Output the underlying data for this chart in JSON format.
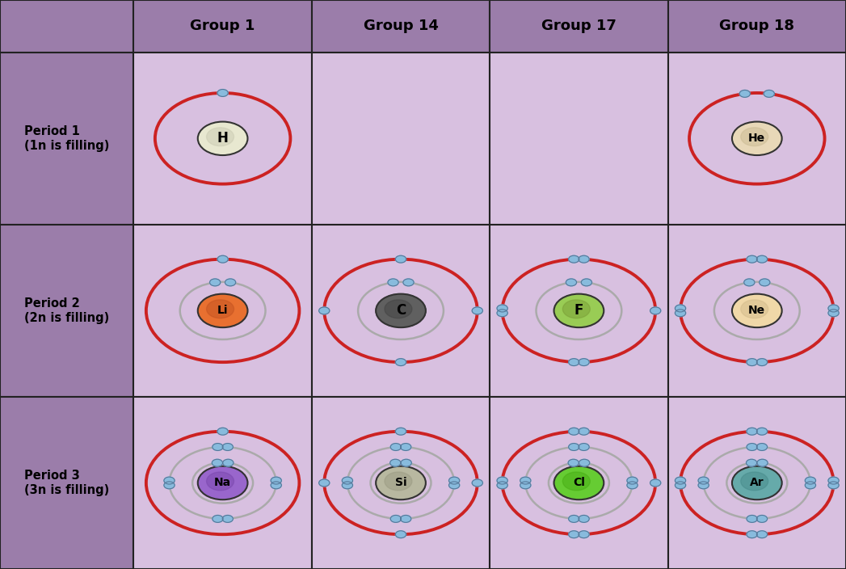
{
  "fig_width": 10.47,
  "fig_height": 7.04,
  "dpi": 100,
  "bg_color": "#1a1a1a",
  "header_bg": "#9b7daa",
  "period_label_bg": "#9b7daa",
  "cell_bg": "#d8c0e0",
  "grid_color": "#222222",
  "header_text_color": "#000000",
  "period_text_color": "#000000",
  "col_labels": [
    "Group 1",
    "Group 14",
    "Group 17",
    "Group 18"
  ],
  "row_labels": [
    "Period 1\n(1n is filling)",
    "Period 2\n(2n is filling)",
    "Period 3\n(3n is filling)"
  ],
  "elements": {
    "H": {
      "symbol": "H",
      "period": 1,
      "group_idx": 0,
      "nucleus_color": "#e8e8d0",
      "nucleus_color2": "#c8c8b0",
      "shells": [
        1
      ]
    },
    "He": {
      "symbol": "He",
      "period": 1,
      "group_idx": 3,
      "nucleus_color": "#e8d8b8",
      "nucleus_color2": "#c8b890",
      "shells": [
        2
      ]
    },
    "Li": {
      "symbol": "Li",
      "period": 2,
      "group_idx": 0,
      "nucleus_color": "#e87030",
      "nucleus_color2": "#c05020",
      "shells": [
        2,
        1
      ]
    },
    "C": {
      "symbol": "C",
      "period": 2,
      "group_idx": 1,
      "nucleus_color": "#606060",
      "nucleus_color2": "#404040",
      "shells": [
        2,
        4
      ]
    },
    "F": {
      "symbol": "F",
      "period": 2,
      "group_idx": 2,
      "nucleus_color": "#99cc55",
      "nucleus_color2": "#779933",
      "shells": [
        2,
        7
      ]
    },
    "Ne": {
      "symbol": "Ne",
      "period": 2,
      "group_idx": 3,
      "nucleus_color": "#f0d8a8",
      "nucleus_color2": "#d0b888",
      "shells": [
        2,
        8
      ]
    },
    "Na": {
      "symbol": "Na",
      "period": 3,
      "group_idx": 0,
      "nucleus_color": "#9966cc",
      "nucleus_color2": "#7744aa",
      "shells": [
        2,
        8,
        1
      ]
    },
    "Si": {
      "symbol": "Si",
      "period": 3,
      "group_idx": 1,
      "nucleus_color": "#b8b8a0",
      "nucleus_color2": "#989880",
      "shells": [
        2,
        8,
        4
      ]
    },
    "Cl": {
      "symbol": "Cl",
      "period": 3,
      "group_idx": 2,
      "nucleus_color": "#66cc33",
      "nucleus_color2": "#44aa11",
      "shells": [
        2,
        8,
        7
      ]
    },
    "Ar": {
      "symbol": "Ar",
      "period": 3,
      "group_idx": 3,
      "nucleus_color": "#66aaaa",
      "nucleus_color2": "#448888",
      "shells": [
        2,
        8,
        8
      ]
    }
  },
  "electron_color": "#88bbdd",
  "electron_color2": "#aaddee",
  "orbit_color_inner": "#aaaaaa",
  "orbit_color_outer": "#cc2222",
  "orbit_lw_inner": 1.8,
  "orbit_lw_outer": 2.8
}
